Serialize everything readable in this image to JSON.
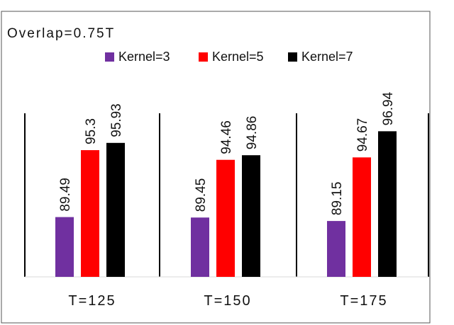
{
  "chart_data": {
    "type": "bar",
    "title": "Overlap=0.75T",
    "xlabel": "",
    "ylabel": "",
    "categories": [
      "T=125",
      "T=150",
      "T=175"
    ],
    "series": [
      {
        "name": "Kernel=3",
        "values": [
          89.49,
          89.45,
          89.15
        ]
      },
      {
        "name": "Kernel=5",
        "values": [
          95.3,
          94.46,
          94.67
        ]
      },
      {
        "name": "Kernel=7",
        "values": [
          95.93,
          94.86,
          96.94
        ]
      }
    ],
    "value_labels": [
      [
        "89.49",
        "95.3",
        "95.93"
      ],
      [
        "89.45",
        "94.46",
        "94.86"
      ],
      [
        "89.15",
        "94.67",
        "96.94"
      ]
    ],
    "ylim": [
      84.3,
      98.5
    ],
    "grid": false,
    "legend_position": "top",
    "colors": [
      "#7030a0",
      "#ff0000",
      "#000000"
    ]
  }
}
